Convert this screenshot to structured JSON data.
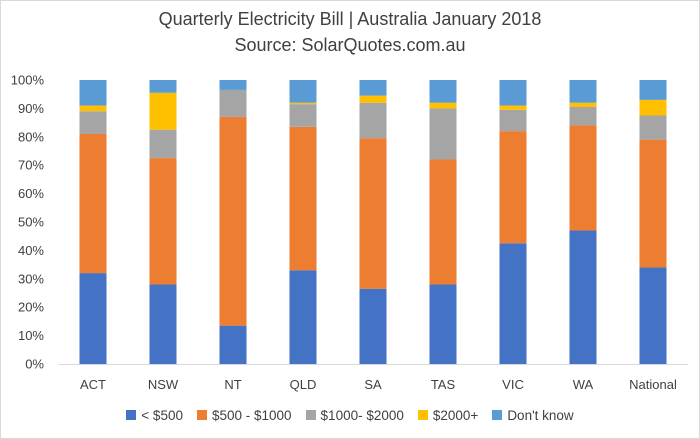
{
  "chart_data": {
    "type": "bar",
    "stacked": true,
    "title": "Quarterly  Electricity Bill | Australia January 2018",
    "subtitle": "Source: SolarQuotes.com.au",
    "categories": [
      "ACT",
      "NSW",
      "NT",
      "QLD",
      "SA",
      "TAS",
      "VIC",
      "WA",
      "National"
    ],
    "ylim": [
      0,
      100
    ],
    "yticks": [
      "0%",
      "10%",
      "20%",
      "30%",
      "40%",
      "50%",
      "60%",
      "70%",
      "80%",
      "90%",
      "100%"
    ],
    "legend_position": "bottom",
    "grid": false,
    "series": [
      {
        "name": "< $500",
        "color": "#4472C4",
        "values": [
          32,
          28,
          13.5,
          33,
          26.5,
          28,
          42.5,
          47,
          34
        ]
      },
      {
        "name": "$500 - $1000",
        "color": "#ED7D31",
        "values": [
          49,
          44.5,
          73.5,
          50.5,
          53,
          44,
          39.5,
          37,
          45
        ]
      },
      {
        "name": "$1000- $2000",
        "color": "#A5A5A5",
        "values": [
          8,
          10,
          9.5,
          8,
          12.5,
          18,
          7.5,
          6.5,
          8.5
        ]
      },
      {
        "name": "$2000+",
        "color": "#FFC000",
        "values": [
          2,
          13,
          0,
          0.5,
          2.5,
          2,
          1.5,
          1.5,
          5.5
        ]
      },
      {
        "name": "Don't know",
        "color": "#5B9BD5",
        "values": [
          9,
          4.5,
          3.5,
          8,
          5.5,
          8,
          9,
          8,
          7
        ]
      }
    ]
  }
}
